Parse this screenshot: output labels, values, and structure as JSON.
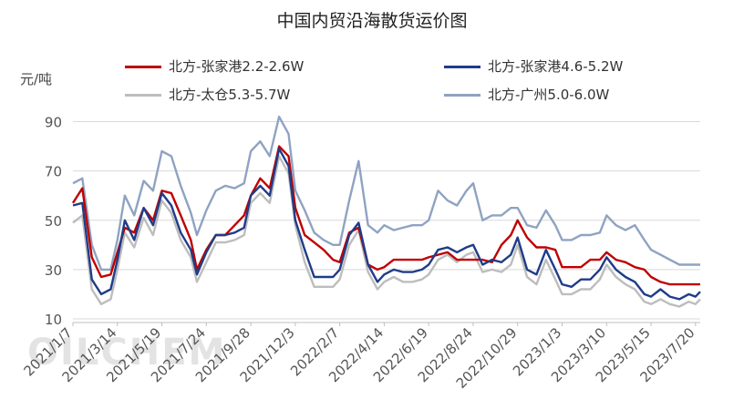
{
  "chart_data": {
    "type": "line",
    "title": "中国内贸沿海散货运价图",
    "ylabel": "元/吨",
    "watermark": "OILCHEM",
    "ylim": [
      10,
      95
    ],
    "y_ticks": [
      10,
      30,
      50,
      70,
      90
    ],
    "x_tick_labels": [
      "2021/1/7",
      "2021/3/14",
      "2021/5/19",
      "2021/7/24",
      "2021/9/28",
      "2021/12/3",
      "2022/2/7",
      "2022/4/14",
      "2022/6/19",
      "2022/8/24",
      "2022/10/29",
      "2023/1/3",
      "2023/3/10",
      "2023/5/15",
      "2023/7/20"
    ],
    "x_range": [
      "2021/1/7",
      "2023/7/27"
    ],
    "grid": "horizontal",
    "legend_position": "top",
    "series": [
      {
        "name": "北方-张家港2.2-2.6W",
        "color": "#c00000",
        "points": [
          [
            "2021/1/7",
            57
          ],
          [
            "2021/1/21",
            63
          ],
          [
            "2021/2/4",
            35
          ],
          [
            "2021/2/18",
            27
          ],
          [
            "2021/3/4",
            28
          ],
          [
            "2021/3/14",
            37
          ],
          [
            "2021/3/25",
            47
          ],
          [
            "2021/4/8",
            45
          ],
          [
            "2021/4/22",
            55
          ],
          [
            "2021/5/6",
            50
          ],
          [
            "2021/5/19",
            62
          ],
          [
            "2021/6/2",
            61
          ],
          [
            "2021/6/16",
            52
          ],
          [
            "2021/7/1",
            42
          ],
          [
            "2021/7/10",
            30
          ],
          [
            "2021/7/24",
            38
          ],
          [
            "2021/8/7",
            44
          ],
          [
            "2021/8/21",
            44
          ],
          [
            "2021/9/4",
            48
          ],
          [
            "2021/9/18",
            52
          ],
          [
            "2021/9/28",
            60
          ],
          [
            "2021/10/12",
            67
          ],
          [
            "2021/10/26",
            63
          ],
          [
            "2021/11/9",
            80
          ],
          [
            "2021/11/23",
            76
          ],
          [
            "2021/12/3",
            55
          ],
          [
            "2021/12/17",
            44
          ],
          [
            "2021/12/31",
            41
          ],
          [
            "2022/1/14",
            38
          ],
          [
            "2022/1/28",
            34
          ],
          [
            "2022/2/7",
            33
          ],
          [
            "2022/2/21",
            45
          ],
          [
            "2022/3/7",
            47
          ],
          [
            "2022/3/21",
            32
          ],
          [
            "2022/4/4",
            30
          ],
          [
            "2022/4/14",
            31
          ],
          [
            "2022/4/28",
            34
          ],
          [
            "2022/5/12",
            34
          ],
          [
            "2022/5/26",
            34
          ],
          [
            "2022/6/9",
            34
          ],
          [
            "2022/6/19",
            35
          ],
          [
            "2022/7/3",
            36
          ],
          [
            "2022/7/17",
            37
          ],
          [
            "2022/7/31",
            34
          ],
          [
            "2022/8/14",
            34
          ],
          [
            "2022/8/24",
            34
          ],
          [
            "2022/9/7",
            34
          ],
          [
            "2022/9/21",
            33
          ],
          [
            "2022/10/5",
            40
          ],
          [
            "2022/10/19",
            44
          ],
          [
            "2022/10/29",
            50
          ],
          [
            "2022/11/12",
            43
          ],
          [
            "2022/11/26",
            39
          ],
          [
            "2022/12/10",
            39
          ],
          [
            "2022/12/24",
            38
          ],
          [
            "2023/1/3",
            31
          ],
          [
            "2023/1/17",
            31
          ],
          [
            "2023/1/31",
            31
          ],
          [
            "2023/2/14",
            34
          ],
          [
            "2023/2/28",
            34
          ],
          [
            "2023/3/10",
            37
          ],
          [
            "2023/3/24",
            34
          ],
          [
            "2023/4/7",
            33
          ],
          [
            "2023/4/21",
            31
          ],
          [
            "2023/5/5",
            30
          ],
          [
            "2023/5/15",
            27
          ],
          [
            "2023/5/29",
            25
          ],
          [
            "2023/6/12",
            24
          ],
          [
            "2023/6/26",
            24
          ],
          [
            "2023/7/10",
            24
          ],
          [
            "2023/7/20",
            24
          ],
          [
            "2023/7/27",
            24
          ]
        ]
      },
      {
        "name": "北方-张家港4.6-5.2W",
        "color": "#1f3c88",
        "points": [
          [
            "2021/1/7",
            56
          ],
          [
            "2021/1/21",
            57
          ],
          [
            "2021/2/4",
            26
          ],
          [
            "2021/2/18",
            20
          ],
          [
            "2021/3/4",
            22
          ],
          [
            "2021/3/14",
            34
          ],
          [
            "2021/3/25",
            50
          ],
          [
            "2021/4/8",
            42
          ],
          [
            "2021/4/22",
            55
          ],
          [
            "2021/5/6",
            48
          ],
          [
            "2021/5/19",
            61
          ],
          [
            "2021/6/2",
            56
          ],
          [
            "2021/6/16",
            45
          ],
          [
            "2021/7/1",
            38
          ],
          [
            "2021/7/10",
            28
          ],
          [
            "2021/7/24",
            37
          ],
          [
            "2021/8/7",
            44
          ],
          [
            "2021/8/21",
            44
          ],
          [
            "2021/9/4",
            45
          ],
          [
            "2021/9/18",
            47
          ],
          [
            "2021/9/28",
            60
          ],
          [
            "2021/10/12",
            64
          ],
          [
            "2021/10/26",
            60
          ],
          [
            "2021/11/9",
            79
          ],
          [
            "2021/11/23",
            72
          ],
          [
            "2021/12/3",
            50
          ],
          [
            "2021/12/17",
            38
          ],
          [
            "2021/12/31",
            27
          ],
          [
            "2022/1/14",
            27
          ],
          [
            "2022/1/28",
            27
          ],
          [
            "2022/2/7",
            30
          ],
          [
            "2022/2/21",
            44
          ],
          [
            "2022/3/7",
            49
          ],
          [
            "2022/3/21",
            32
          ],
          [
            "2022/4/4",
            25
          ],
          [
            "2022/4/14",
            28
          ],
          [
            "2022/4/28",
            30
          ],
          [
            "2022/5/12",
            29
          ],
          [
            "2022/5/26",
            29
          ],
          [
            "2022/6/9",
            30
          ],
          [
            "2022/6/19",
            32
          ],
          [
            "2022/7/3",
            38
          ],
          [
            "2022/7/17",
            39
          ],
          [
            "2022/7/31",
            37
          ],
          [
            "2022/8/14",
            39
          ],
          [
            "2022/8/24",
            40
          ],
          [
            "2022/9/7",
            32
          ],
          [
            "2022/9/21",
            34
          ],
          [
            "2022/10/5",
            33
          ],
          [
            "2022/10/19",
            36
          ],
          [
            "2022/10/29",
            43
          ],
          [
            "2022/11/12",
            30
          ],
          [
            "2022/11/26",
            28
          ],
          [
            "2022/12/10",
            38
          ],
          [
            "2022/12/24",
            30
          ],
          [
            "2023/1/3",
            24
          ],
          [
            "2023/1/17",
            23
          ],
          [
            "2023/1/31",
            26
          ],
          [
            "2023/2/14",
            26
          ],
          [
            "2023/2/28",
            30
          ],
          [
            "2023/3/10",
            35
          ],
          [
            "2023/3/24",
            30
          ],
          [
            "2023/4/7",
            27
          ],
          [
            "2023/4/21",
            25
          ],
          [
            "2023/5/5",
            20
          ],
          [
            "2023/5/15",
            19
          ],
          [
            "2023/5/29",
            22
          ],
          [
            "2023/6/12",
            19
          ],
          [
            "2023/6/26",
            18
          ],
          [
            "2023/7/10",
            20
          ],
          [
            "2023/7/20",
            19
          ],
          [
            "2023/7/27",
            21
          ]
        ]
      },
      {
        "name": "北方-太仓5.3-5.7W",
        "color": "#bdbdbd",
        "points": [
          [
            "2021/1/7",
            49
          ],
          [
            "2021/1/21",
            52
          ],
          [
            "2021/2/4",
            22
          ],
          [
            "2021/2/18",
            16
          ],
          [
            "2021/3/4",
            18
          ],
          [
            "2021/3/14",
            30
          ],
          [
            "2021/3/25",
            45
          ],
          [
            "2021/4/8",
            39
          ],
          [
            "2021/4/22",
            51
          ],
          [
            "2021/5/6",
            44
          ],
          [
            "2021/5/19",
            58
          ],
          [
            "2021/6/2",
            53
          ],
          [
            "2021/6/16",
            42
          ],
          [
            "2021/7/1",
            35
          ],
          [
            "2021/7/10",
            25
          ],
          [
            "2021/7/24",
            33
          ],
          [
            "2021/8/7",
            41
          ],
          [
            "2021/8/21",
            41
          ],
          [
            "2021/9/4",
            42
          ],
          [
            "2021/9/18",
            44
          ],
          [
            "2021/9/28",
            57
          ],
          [
            "2021/10/12",
            61
          ],
          [
            "2021/10/26",
            57
          ],
          [
            "2021/11/9",
            76
          ],
          [
            "2021/11/23",
            69
          ],
          [
            "2021/12/3",
            48
          ],
          [
            "2021/12/17",
            33
          ],
          [
            "2021/12/31",
            23
          ],
          [
            "2022/1/14",
            23
          ],
          [
            "2022/1/28",
            23
          ],
          [
            "2022/2/7",
            26
          ],
          [
            "2022/2/21",
            40
          ],
          [
            "2022/3/7",
            46
          ],
          [
            "2022/3/21",
            29
          ],
          [
            "2022/4/4",
            22
          ],
          [
            "2022/4/14",
            25
          ],
          [
            "2022/4/28",
            27
          ],
          [
            "2022/5/12",
            25
          ],
          [
            "2022/5/26",
            25
          ],
          [
            "2022/6/9",
            26
          ],
          [
            "2022/6/19",
            28
          ],
          [
            "2022/7/3",
            34
          ],
          [
            "2022/7/17",
            36
          ],
          [
            "2022/7/31",
            33
          ],
          [
            "2022/8/14",
            36
          ],
          [
            "2022/8/24",
            37
          ],
          [
            "2022/9/7",
            29
          ],
          [
            "2022/9/21",
            30
          ],
          [
            "2022/10/5",
            29
          ],
          [
            "2022/10/19",
            32
          ],
          [
            "2022/10/29",
            40
          ],
          [
            "2022/11/12",
            27
          ],
          [
            "2022/11/26",
            24
          ],
          [
            "2022/12/10",
            34
          ],
          [
            "2022/12/24",
            26
          ],
          [
            "2023/1/3",
            20
          ],
          [
            "2023/1/17",
            20
          ],
          [
            "2023/1/31",
            22
          ],
          [
            "2023/2/14",
            22
          ],
          [
            "2023/2/28",
            26
          ],
          [
            "2023/3/10",
            32
          ],
          [
            "2023/3/24",
            27
          ],
          [
            "2023/4/7",
            24
          ],
          [
            "2023/4/21",
            22
          ],
          [
            "2023/5/5",
            17
          ],
          [
            "2023/5/15",
            16
          ],
          [
            "2023/5/29",
            18
          ],
          [
            "2023/6/12",
            16
          ],
          [
            "2023/6/26",
            15
          ],
          [
            "2023/7/10",
            17
          ],
          [
            "2023/7/20",
            16
          ],
          [
            "2023/7/27",
            18
          ]
        ]
      },
      {
        "name": "北方-广州5.0-6.0W",
        "color": "#8fa3c1",
        "points": [
          [
            "2021/1/7",
            65
          ],
          [
            "2021/1/21",
            67
          ],
          [
            "2021/2/4",
            40
          ],
          [
            "2021/2/18",
            30
          ],
          [
            "2021/3/4",
            30
          ],
          [
            "2021/3/14",
            42
          ],
          [
            "2021/3/25",
            60
          ],
          [
            "2021/4/8",
            52
          ],
          [
            "2021/4/22",
            66
          ],
          [
            "2021/5/6",
            62
          ],
          [
            "2021/5/19",
            78
          ],
          [
            "2021/6/2",
            76
          ],
          [
            "2021/6/16",
            64
          ],
          [
            "2021/7/1",
            53
          ],
          [
            "2021/7/10",
            44
          ],
          [
            "2021/7/24",
            54
          ],
          [
            "2021/8/7",
            62
          ],
          [
            "2021/8/21",
            64
          ],
          [
            "2021/9/4",
            63
          ],
          [
            "2021/9/18",
            65
          ],
          [
            "2021/9/28",
            78
          ],
          [
            "2021/10/12",
            82
          ],
          [
            "2021/10/26",
            76
          ],
          [
            "2021/11/9",
            92
          ],
          [
            "2021/11/23",
            85
          ],
          [
            "2021/12/3",
            62
          ],
          [
            "2021/12/17",
            54
          ],
          [
            "2021/12/31",
            45
          ],
          [
            "2022/1/14",
            42
          ],
          [
            "2022/1/28",
            40
          ],
          [
            "2022/2/7",
            40
          ],
          [
            "2022/2/21",
            58
          ],
          [
            "2022/3/7",
            74
          ],
          [
            "2022/3/21",
            48
          ],
          [
            "2022/4/4",
            45
          ],
          [
            "2022/4/14",
            48
          ],
          [
            "2022/4/28",
            46
          ],
          [
            "2022/5/12",
            47
          ],
          [
            "2022/5/26",
            48
          ],
          [
            "2022/6/9",
            48
          ],
          [
            "2022/6/19",
            50
          ],
          [
            "2022/7/3",
            62
          ],
          [
            "2022/7/17",
            58
          ],
          [
            "2022/7/31",
            56
          ],
          [
            "2022/8/14",
            62
          ],
          [
            "2022/8/24",
            65
          ],
          [
            "2022/9/7",
            50
          ],
          [
            "2022/9/21",
            52
          ],
          [
            "2022/10/5",
            52
          ],
          [
            "2022/10/19",
            55
          ],
          [
            "2022/10/29",
            55
          ],
          [
            "2022/11/12",
            48
          ],
          [
            "2022/11/26",
            47
          ],
          [
            "2022/12/10",
            54
          ],
          [
            "2022/12/24",
            48
          ],
          [
            "2023/1/3",
            42
          ],
          [
            "2023/1/17",
            42
          ],
          [
            "2023/1/31",
            44
          ],
          [
            "2023/2/14",
            44
          ],
          [
            "2023/2/28",
            45
          ],
          [
            "2023/3/10",
            52
          ],
          [
            "2023/3/24",
            48
          ],
          [
            "2023/4/7",
            46
          ],
          [
            "2023/4/21",
            48
          ],
          [
            "2023/5/5",
            42
          ],
          [
            "2023/5/15",
            38
          ],
          [
            "2023/5/29",
            36
          ],
          [
            "2023/6/12",
            34
          ],
          [
            "2023/6/26",
            32
          ],
          [
            "2023/7/10",
            32
          ],
          [
            "2023/7/20",
            32
          ],
          [
            "2023/7/27",
            32
          ]
        ]
      }
    ]
  }
}
